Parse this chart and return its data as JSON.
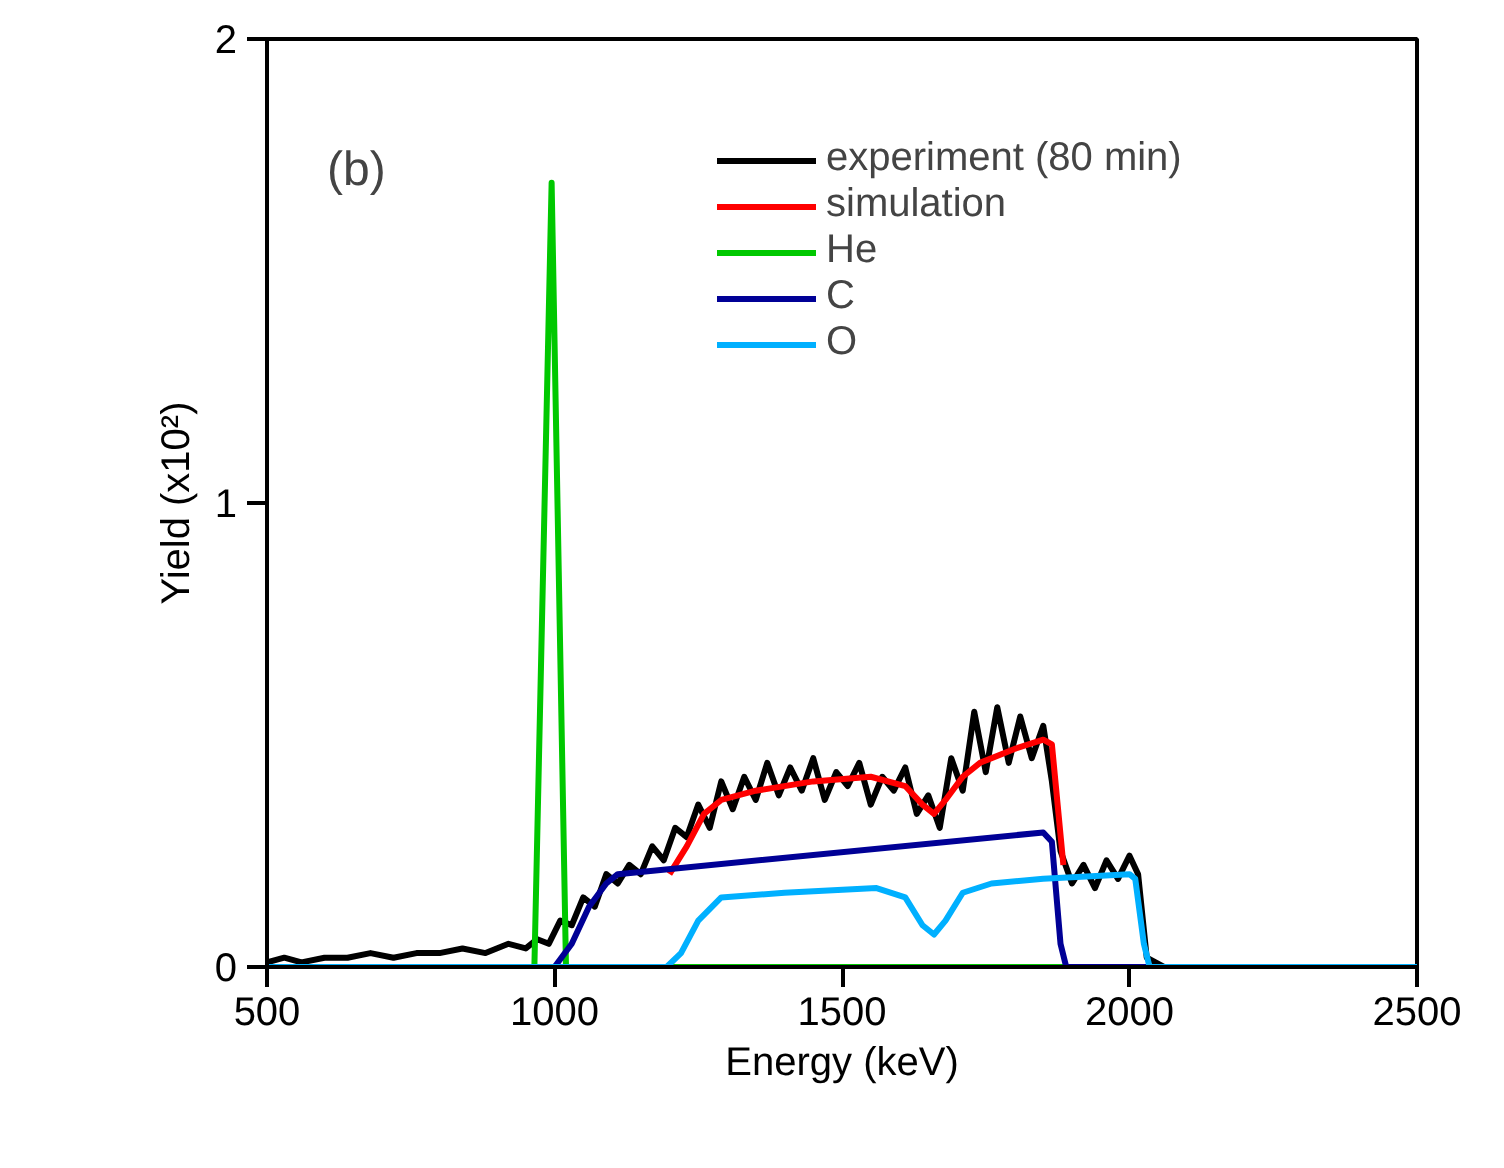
{
  "chart_data": {
    "type": "line",
    "xlabel": "Energy (keV)",
    "ylabel": "Yield (x10²)",
    "annotations": [
      "(b)"
    ],
    "xlim": [
      500,
      2500
    ],
    "ylim": [
      0,
      2
    ],
    "xticks": [
      500,
      1000,
      1500,
      2000,
      2500
    ],
    "yticks": [
      0,
      1,
      2
    ],
    "grid": false,
    "legend": "top right",
    "line_style": "solid",
    "series": [
      {
        "name": "experiment (80 min)",
        "color": "#000000",
        "x": [
          500,
          530,
          560,
          600,
          640,
          680,
          720,
          760,
          800,
          840,
          880,
          920,
          950,
          970,
          990,
          1010,
          1030,
          1050,
          1070,
          1090,
          1110,
          1130,
          1150,
          1170,
          1190,
          1210,
          1230,
          1250,
          1270,
          1290,
          1310,
          1330,
          1350,
          1370,
          1390,
          1410,
          1430,
          1450,
          1470,
          1490,
          1510,
          1530,
          1550,
          1570,
          1590,
          1610,
          1630,
          1650,
          1670,
          1690,
          1710,
          1730,
          1750,
          1770,
          1790,
          1810,
          1830,
          1850,
          1865,
          1880,
          1900,
          1920,
          1940,
          1960,
          1980,
          2000,
          2015,
          2030,
          2060,
          2100
        ],
        "values": [
          0.01,
          0.02,
          0.01,
          0.02,
          0.02,
          0.03,
          0.02,
          0.03,
          0.03,
          0.04,
          0.03,
          0.05,
          0.04,
          0.06,
          0.05,
          0.1,
          0.09,
          0.15,
          0.13,
          0.2,
          0.18,
          0.22,
          0.2,
          0.26,
          0.23,
          0.3,
          0.28,
          0.35,
          0.3,
          0.4,
          0.34,
          0.41,
          0.36,
          0.44,
          0.37,
          0.43,
          0.38,
          0.45,
          0.36,
          0.42,
          0.39,
          0.44,
          0.35,
          0.41,
          0.38,
          0.43,
          0.33,
          0.37,
          0.3,
          0.45,
          0.38,
          0.55,
          0.42,
          0.56,
          0.44,
          0.54,
          0.45,
          0.52,
          0.4,
          0.25,
          0.18,
          0.22,
          0.17,
          0.23,
          0.19,
          0.24,
          0.2,
          0.02,
          0.0,
          0.0
        ]
      },
      {
        "name": "simulation",
        "color": "#ff0000",
        "x": [
          1200,
          1230,
          1260,
          1290,
          1350,
          1450,
          1550,
          1610,
          1640,
          1660,
          1680,
          1710,
          1740,
          1800,
          1850,
          1865,
          1875,
          1885
        ],
        "values": [
          0.2,
          0.26,
          0.33,
          0.36,
          0.38,
          0.4,
          0.41,
          0.39,
          0.35,
          0.33,
          0.36,
          0.41,
          0.44,
          0.47,
          0.49,
          0.48,
          0.35,
          0.22
        ]
      },
      {
        "name": "He",
        "color": "#00c800",
        "x": [
          500,
          965,
          995,
          1020,
          2500
        ],
        "values": [
          0,
          0,
          1.69,
          0,
          0
        ]
      },
      {
        "name": "C",
        "color": "#000096",
        "x": [
          500,
          1000,
          1030,
          1060,
          1090,
          1110,
          1850,
          1865,
          1880,
          1890,
          2500
        ],
        "values": [
          0,
          0,
          0.05,
          0.13,
          0.18,
          0.2,
          0.29,
          0.27,
          0.05,
          0,
          0
        ]
      },
      {
        "name": "O",
        "color": "#00b0ff",
        "x": [
          500,
          1195,
          1220,
          1250,
          1290,
          1400,
          1560,
          1610,
          1640,
          1660,
          1680,
          1710,
          1760,
          1850,
          2000,
          2010,
          2025,
          2035,
          2500
        ],
        "values": [
          0,
          0,
          0.03,
          0.1,
          0.15,
          0.16,
          0.17,
          0.15,
          0.09,
          0.07,
          0.1,
          0.16,
          0.18,
          0.19,
          0.2,
          0.19,
          0.05,
          0,
          0
        ]
      }
    ]
  }
}
